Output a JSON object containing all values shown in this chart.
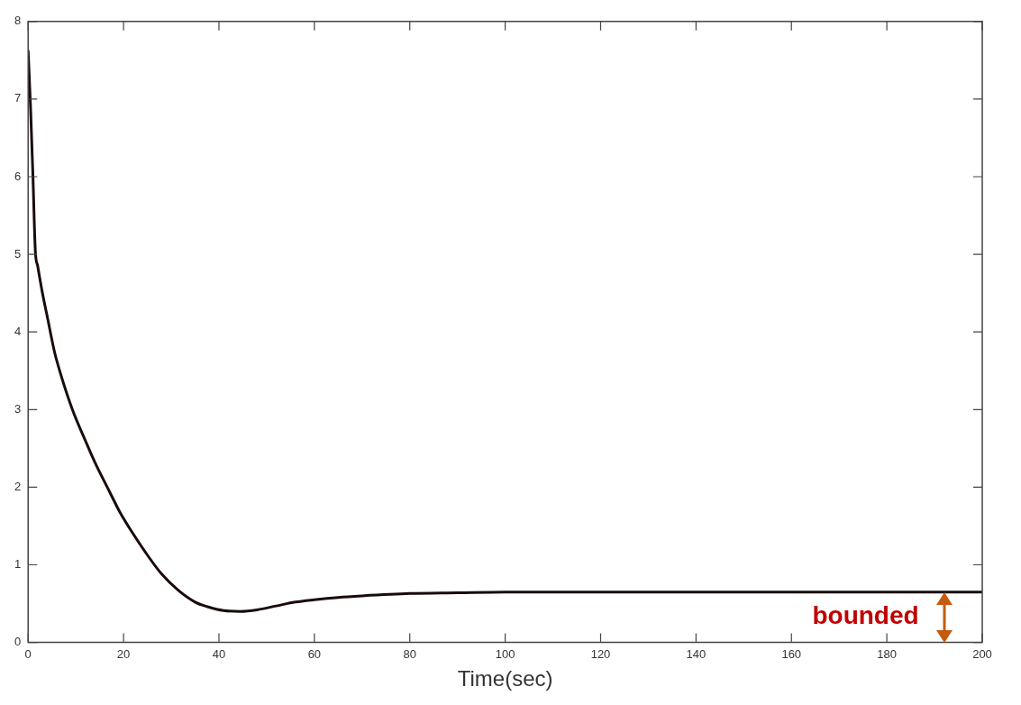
{
  "chart_data": {
    "type": "line",
    "xlabel": "Time(sec)",
    "series": [
      {
        "color": "#1a0a0a",
        "x": [
          0,
          0.5,
          1,
          1.5,
          2,
          3,
          4,
          5.5,
          7,
          9.4,
          12,
          14,
          17,
          19.3,
          22,
          25.4,
          28,
          31.5,
          35,
          37.6,
          41,
          44.5,
          48,
          52,
          56,
          60,
          65,
          70,
          80,
          90,
          100,
          120,
          150,
          200
        ],
        "values": [
          7.62,
          6.9,
          6.02,
          5.05,
          4.85,
          4.5,
          4.2,
          3.75,
          3.42,
          2.98,
          2.6,
          2.32,
          1.95,
          1.67,
          1.4,
          1.09,
          0.88,
          0.67,
          0.52,
          0.46,
          0.41,
          0.4,
          0.42,
          0.47,
          0.52,
          0.55,
          0.58,
          0.6,
          0.63,
          0.64,
          0.65,
          0.65,
          0.65,
          0.65
        ]
      }
    ],
    "xlim": [
      0,
      200
    ],
    "xticks": [
      0,
      20,
      40,
      60,
      80,
      100,
      120,
      140,
      160,
      180,
      200
    ],
    "ylim": [
      0,
      8
    ],
    "yticks": [
      0,
      1,
      2,
      3,
      4,
      5,
      6,
      7,
      8
    ],
    "grid": false,
    "legend": false,
    "marker": "none",
    "line_style": "solid",
    "annotations": [
      {
        "text": "bounded",
        "x": 192,
        "y": 0.65
      }
    ]
  }
}
